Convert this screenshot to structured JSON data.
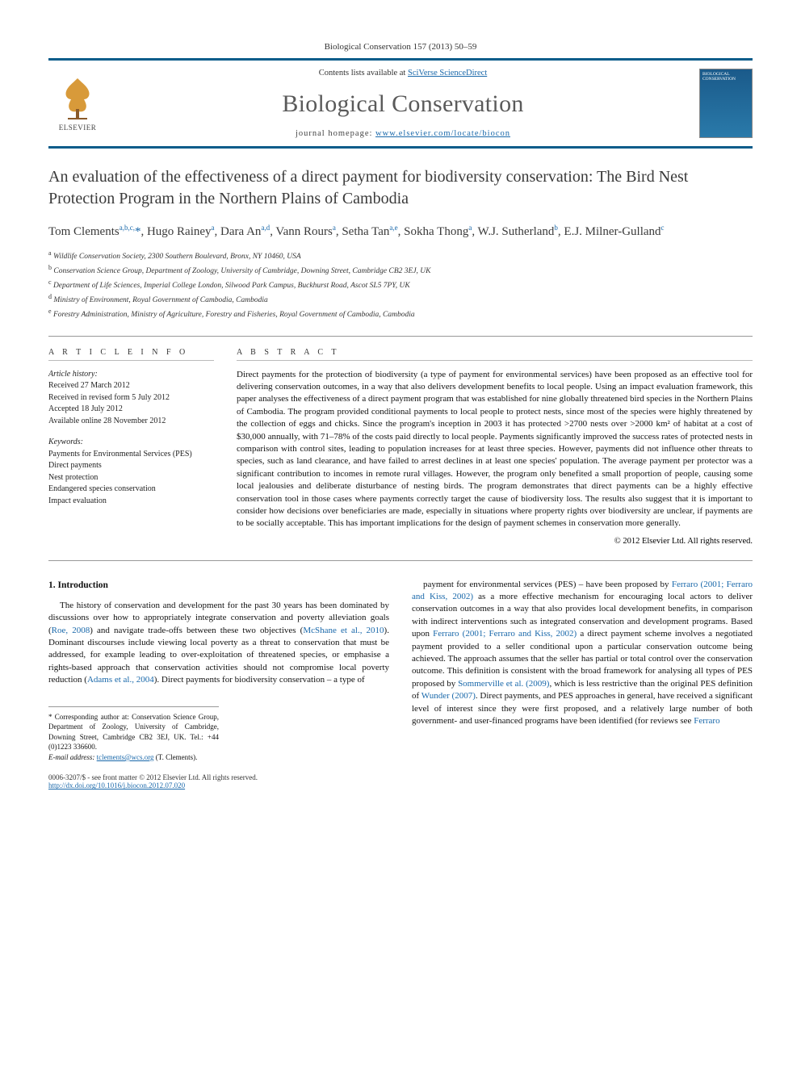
{
  "journal_ref": "Biological Conservation 157 (2013) 50–59",
  "header": {
    "contents_line_prefix": "Contents lists available at ",
    "contents_link": "SciVerse ScienceDirect",
    "journal_name": "Biological Conservation",
    "homepage_prefix": "journal homepage: ",
    "homepage_url": "www.elsevier.com/locate/biocon",
    "publisher_name": "ELSEVIER",
    "cover_title": "BIOLOGICAL CONSERVATION"
  },
  "title": "An evaluation of the effectiveness of a direct payment for biodiversity conservation: The Bird Nest Protection Program in the Northern Plains of Cambodia",
  "authors_html": "Tom Clements<sup>a,b,c,</sup><span class='ast'>*</span>, Hugo Rainey<sup>a</sup>, Dara An<sup>a,d</sup>, Vann Rours<sup>a</sup>, Setha Tan<sup>a,e</sup>, Sokha Thong<sup>a</sup>, W.J. Sutherland<sup>b</sup>, E.J. Milner-Gulland<sup>c</sup>",
  "affiliations": [
    "a Wildlife Conservation Society, 2300 Southern Boulevard, Bronx, NY 10460, USA",
    "b Conservation Science Group, Department of Zoology, University of Cambridge, Downing Street, Cambridge CB2 3EJ, UK",
    "c Department of Life Sciences, Imperial College London, Silwood Park Campus, Buckhurst Road, Ascot SL5 7PY, UK",
    "d Ministry of Environment, Royal Government of Cambodia, Cambodia",
    "e Forestry Administration, Ministry of Agriculture, Forestry and Fisheries, Royal Government of Cambodia, Cambodia"
  ],
  "article_info": {
    "heading": "A R T I C L E   I N F O",
    "history_label": "Article history:",
    "history": [
      "Received 27 March 2012",
      "Received in revised form 5 July 2012",
      "Accepted 18 July 2012",
      "Available online 28 November 2012"
    ],
    "keywords_label": "Keywords:",
    "keywords": [
      "Payments for Environmental Services (PES)",
      "Direct payments",
      "Nest protection",
      "Endangered species conservation",
      "Impact evaluation"
    ]
  },
  "abstract": {
    "heading": "A B S T R A C T",
    "text": "Direct payments for the protection of biodiversity (a type of payment for environmental services) have been proposed as an effective tool for delivering conservation outcomes, in a way that also delivers development benefits to local people. Using an impact evaluation framework, this paper analyses the effectiveness of a direct payment program that was established for nine globally threatened bird species in the Northern Plains of Cambodia. The program provided conditional payments to local people to protect nests, since most of the species were highly threatened by the collection of eggs and chicks. Since the program's inception in 2003 it has protected >2700 nests over >2000 km² of habitat at a cost of $30,000 annually, with 71–78% of the costs paid directly to local people. Payments significantly improved the success rates of protected nests in comparison with control sites, leading to population increases for at least three species. However, payments did not influence other threats to species, such as land clearance, and have failed to arrest declines in at least one species' population. The average payment per protector was a significant contribution to incomes in remote rural villages. However, the program only benefited a small proportion of people, causing some local jealousies and deliberate disturbance of nesting birds. The program demonstrates that direct payments can be a highly effective conservation tool in those cases where payments correctly target the cause of biodiversity loss. The results also suggest that it is important to consider how decisions over beneficiaries are made, especially in situations where property rights over biodiversity are unclear, if payments are to be socially acceptable. This has important implications for the design of payment schemes in conservation more generally.",
    "copyright": "© 2012 Elsevier Ltd. All rights reserved."
  },
  "body": {
    "section_heading": "1. Introduction",
    "col1": "The history of conservation and development for the past 30 years has been dominated by discussions over how to appropriately integrate conservation and poverty alleviation goals (<span class='cite'>Roe, 2008</span>) and navigate trade-offs between these two objectives (<span class='cite'>McShane et al., 2010</span>). Dominant discourses include viewing local poverty as a threat to conservation that must be addressed, for example leading to over-exploitation of threatened species, or emphasise a rights-based approach that conservation activities should not compromise local poverty reduction (<span class='cite'>Adams et al., 2004</span>). Direct payments for biodiversity conservation – a type of",
    "col2": "payment for environmental services (PES) – have been proposed by <span class='cite'>Ferraro (2001; Ferraro and Kiss, 2002)</span> as a more effective mechanism for encouraging local actors to deliver conservation outcomes in a way that also provides local development benefits, in comparison with indirect interventions such as integrated conservation and development programs. Based upon <span class='cite'>Ferraro (2001; Ferraro and Kiss, 2002)</span> a direct payment scheme involves a negotiated payment provided to a seller conditional upon a particular conservation outcome being achieved. The approach assumes that the seller has partial or total control over the conservation outcome. This definition is consistent with the broad framework for analysing all types of PES proposed by <span class='cite'>Sommerville et al. (2009)</span>, which is less restrictive than the original PES definition of <span class='cite'>Wunder (2007)</span>. Direct payments, and PES approaches in general, have received a significant level of interest since they were first proposed, and a relatively large number of both government- and user-financed programs have been identified (for reviews see <span class='cite'>Ferraro</span>"
  },
  "footnotes": {
    "corr": "* Corresponding author at: Conservation Science Group, Department of Zoology, University of Cambridge, Downing Street, Cambridge CB2 3EJ, UK. Tel.: +44 (0)1223 336600.",
    "email_label": "E-mail address:",
    "email": "tclements@wcs.org",
    "email_who": "(T. Clements)."
  },
  "footer": {
    "issn_line": "0006-3207/$ - see front matter © 2012 Elsevier Ltd. All rights reserved.",
    "doi": "http://dx.doi.org/10.1016/j.biocon.2012.07.020"
  },
  "colors": {
    "accent": "#0a5c8a",
    "link": "#1968aa",
    "text": "#111111",
    "muted": "#5a5a5a",
    "rule": "#999999"
  }
}
